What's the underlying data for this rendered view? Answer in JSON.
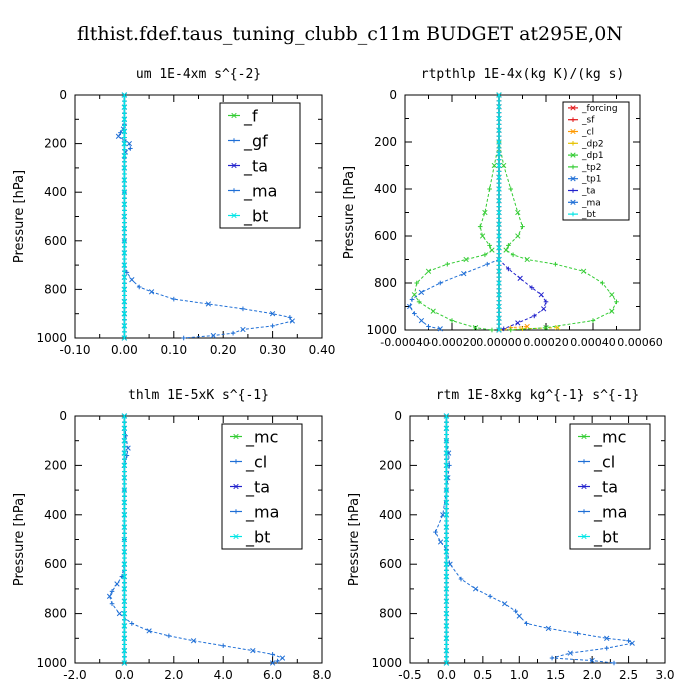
{
  "figure": {
    "title": "flthist.fdef.taus_tuning_clubb_c11m  BUDGET at295E,0N"
  },
  "colors": {
    "green": "#33cc33",
    "blue": "#1f6fd6",
    "navy": "#2222cc",
    "red": "#e31a1c",
    "orange": "#ff9900",
    "gold": "#e6c200",
    "cyan": "#00e5e5"
  },
  "chart_data": [
    {
      "type": "line",
      "title": "um  1E-4xm s^{-2}",
      "ylabel": "Pressure [hPa]",
      "xlim": [
        -0.1,
        0.4
      ],
      "ylim": [
        1000,
        0
      ],
      "y_inverted": true,
      "xticks": [
        "-0.10",
        "0.00",
        "0.10",
        "0.20",
        "0.30",
        "0.40"
      ],
      "yticks": [
        "0",
        "200",
        "400",
        "600",
        "800",
        "1000"
      ],
      "legend_placement": "top-right",
      "legend": [
        "_f",
        "_gf",
        "_ta",
        "_ma",
        "_bt"
      ],
      "series": [
        {
          "name": "_f",
          "color": "green",
          "x": [
            0,
            0
          ],
          "y": [
            0,
            1000
          ]
        },
        {
          "name": "_gf",
          "color": "blue",
          "x": [
            0,
            0,
            -0.002,
            -0.008,
            -0.012,
            0,
            0.01,
            0.012,
            0.002,
            0,
            0,
            0,
            0,
            0,
            0,
            0.005,
            0.015,
            0.03,
            0.055,
            0.1,
            0.17,
            0.24,
            0.3,
            0.335,
            0.34,
            0.3,
            0.24,
            0.22,
            0.18,
            0.12
          ],
          "y": [
            0,
            120,
            140,
            155,
            170,
            185,
            200,
            220,
            235,
            260,
            300,
            400,
            500,
            600,
            700,
            730,
            760,
            790,
            810,
            840,
            860,
            880,
            900,
            915,
            930,
            950,
            965,
            980,
            990,
            1000
          ]
        },
        {
          "name": "_ta",
          "color": "navy",
          "x": [
            0,
            0
          ],
          "y": [
            0,
            1000
          ]
        },
        {
          "name": "_ma",
          "color": "blue",
          "x": [
            0,
            0
          ],
          "y": [
            0,
            1000
          ]
        },
        {
          "name": "_bt",
          "color": "cyan",
          "x": [
            0,
            0
          ],
          "y": [
            0,
            1000
          ]
        }
      ]
    },
    {
      "type": "line",
      "title": "rtpthlp  1E-4x(kg K)/(kg s)",
      "ylabel": "Pressure [hPa]",
      "xlim": [
        -0.0004,
        0.0006
      ],
      "ylim": [
        1000,
        0
      ],
      "y_inverted": true,
      "xticks": [
        "-0.00040",
        "-0.00020",
        "0.00000",
        "0.00020",
        "0.00040",
        "0.00060"
      ],
      "yticks": [
        "0",
        "200",
        "400",
        "600",
        "800",
        "1000"
      ],
      "legend_placement": "top-right",
      "legend": [
        "_forcing",
        "_sf",
        "_cl",
        "_dp2",
        "_dp1",
        "_tp2",
        "_tp1",
        "_ta",
        "_ma",
        "_bt"
      ],
      "series": [
        {
          "name": "_forcing",
          "color": "red",
          "x": [
            0,
            0
          ],
          "y": [
            0,
            1000
          ]
        },
        {
          "name": "_sf",
          "color": "red",
          "x": [
            0,
            0
          ],
          "y": [
            0,
            1000
          ]
        },
        {
          "name": "_cl",
          "color": "orange",
          "x": [
            0,
            5e-05,
            0.00012
          ],
          "y": [
            1000,
            990,
            985
          ]
        },
        {
          "name": "_dp2",
          "color": "gold",
          "x": [
            0,
            0.0001,
            0.00025
          ],
          "y": [
            1000,
            995,
            990
          ]
        },
        {
          "name": "_dp1",
          "color": "green",
          "x": [
            0,
            0,
            2e-05,
            5e-05,
            8e-05,
            0.0001,
            8e-05,
            4e-05,
            3e-05,
            6e-05,
            0.00012,
            0.00024,
            0.00036,
            0.00044,
            0.00048,
            0.0005,
            0.00048,
            0.0004,
            0.0002,
            5e-05
          ],
          "y": [
            0,
            200,
            300,
            400,
            500,
            560,
            600,
            640,
            660,
            680,
            700,
            720,
            750,
            800,
            850,
            880,
            920,
            960,
            990,
            1000
          ]
        },
        {
          "name": "_tp2",
          "color": "green",
          "x": [
            0,
            0,
            -2e-05,
            -4e-05,
            -6e-05,
            -8e-05,
            -7e-05,
            -4e-05,
            -3e-05,
            -6e-05,
            -0.00014,
            -0.00022,
            -0.0003,
            -0.00035,
            -0.00036,
            -0.00034,
            -0.00028,
            -0.0002,
            -0.0001,
            -3e-05
          ],
          "y": [
            0,
            200,
            300,
            400,
            500,
            560,
            600,
            640,
            660,
            680,
            700,
            720,
            750,
            800,
            850,
            880,
            920,
            960,
            990,
            1000
          ]
        },
        {
          "name": "_tp1",
          "color": "blue",
          "x": [
            0,
            -5e-05,
            -0.00015,
            -0.00025,
            -0.00033,
            -0.00037,
            -0.00038,
            -0.00036,
            -0.00033,
            -0.0003,
            -0.00025
          ],
          "y": [
            700,
            720,
            760,
            800,
            840,
            870,
            900,
            930,
            960,
            985,
            995
          ]
        },
        {
          "name": "_ta",
          "color": "navy",
          "x": [
            0,
            4e-05,
            9e-05,
            0.00014,
            0.00018,
            0.0002,
            0.00019,
            0.00015,
            8e-05,
            2e-05
          ],
          "y": [
            700,
            740,
            780,
            820,
            850,
            880,
            910,
            940,
            970,
            995
          ]
        },
        {
          "name": "_ma",
          "color": "blue",
          "x": [
            0,
            0
          ],
          "y": [
            0,
            1000
          ]
        },
        {
          "name": "_bt",
          "color": "cyan",
          "x": [
            0,
            0
          ],
          "y": [
            0,
            1000
          ]
        }
      ]
    },
    {
      "type": "line",
      "title": "thlm  1E-5xK s^{-1}",
      "ylabel": "Pressure [hPa]",
      "xlim": [
        -2.0,
        8.0
      ],
      "ylim": [
        1000,
        0
      ],
      "y_inverted": true,
      "xticks": [
        "-2.0",
        "0.0",
        "2.0",
        "4.0",
        "6.0",
        "8.0"
      ],
      "yticks": [
        "0",
        "200",
        "400",
        "600",
        "800",
        "1000"
      ],
      "legend_placement": "top-right",
      "legend": [
        "_mc",
        "_cl",
        "_ta",
        "_ma",
        "_bt"
      ],
      "series": [
        {
          "name": "_mc",
          "color": "green",
          "x": [
            0,
            0
          ],
          "y": [
            0,
            1000
          ]
        },
        {
          "name": "_cl",
          "color": "blue",
          "x": [
            0,
            0.05,
            0.15,
            0.1,
            0,
            0,
            0,
            0,
            0,
            -0.1,
            -0.3,
            -0.5,
            -0.6,
            -0.5,
            -0.2,
            0.3,
            1.0,
            1.8,
            2.8,
            4.0,
            5.2,
            6.0,
            6.4,
            6.2,
            6.0
          ],
          "y": [
            0,
            80,
            130,
            160,
            200,
            300,
            400,
            500,
            600,
            650,
            680,
            710,
            730,
            760,
            800,
            840,
            870,
            890,
            910,
            930,
            950,
            965,
            980,
            992,
            1000
          ]
        },
        {
          "name": "_ta",
          "color": "navy",
          "x": [
            0,
            0
          ],
          "y": [
            0,
            1000
          ]
        },
        {
          "name": "_ma",
          "color": "blue",
          "x": [
            0,
            0
          ],
          "y": [
            0,
            1000
          ]
        },
        {
          "name": "_bt",
          "color": "cyan",
          "x": [
            0,
            0
          ],
          "y": [
            0,
            1000
          ]
        }
      ]
    },
    {
      "type": "line",
      "title": "rtm  1E-8xkg kg^{-1} s^{-1}",
      "ylabel": "Pressure [hPa]",
      "xlim": [
        -0.5,
        3.0
      ],
      "ylim": [
        1000,
        0
      ],
      "y_inverted": true,
      "xticks": [
        "-0.5",
        "0.0",
        "0.5",
        "1.0",
        "1.5",
        "2.0",
        "2.5",
        "3.0"
      ],
      "yticks": [
        "0",
        "200",
        "400",
        "600",
        "800",
        "1000"
      ],
      "legend_placement": "top-right",
      "legend": [
        "_mc",
        "_cl",
        "_ta",
        "_ma",
        "_bt"
      ],
      "series": [
        {
          "name": "_mc",
          "color": "green",
          "x": [
            0,
            0
          ],
          "y": [
            0,
            1000
          ]
        },
        {
          "name": "_cl",
          "color": "blue",
          "x": [
            0,
            0,
            0.03,
            0.04,
            0.02,
            0,
            -0.05,
            -0.15,
            -0.08,
            0,
            0.05,
            0.2,
            0.4,
            0.6,
            0.8,
            0.95,
            1.0,
            1.1,
            1.4,
            1.8,
            2.2,
            2.5,
            2.55,
            2.2,
            1.7,
            1.45,
            2.0,
            2.3
          ],
          "y": [
            0,
            100,
            150,
            200,
            250,
            300,
            400,
            470,
            510,
            540,
            600,
            660,
            700,
            730,
            760,
            790,
            810,
            840,
            860,
            880,
            900,
            910,
            920,
            940,
            960,
            980,
            990,
            1000
          ]
        },
        {
          "name": "_ta",
          "color": "navy",
          "x": [
            0,
            0
          ],
          "y": [
            0,
            1000
          ]
        },
        {
          "name": "_ma",
          "color": "blue",
          "x": [
            0,
            0
          ],
          "y": [
            0,
            1000
          ]
        },
        {
          "name": "_bt",
          "color": "cyan",
          "x": [
            0,
            0
          ],
          "y": [
            0,
            1000
          ]
        }
      ]
    }
  ]
}
